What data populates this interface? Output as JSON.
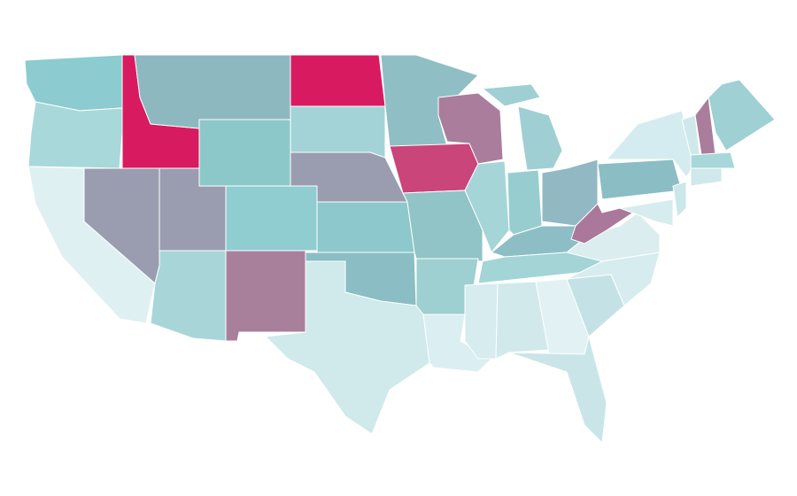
{
  "map": {
    "regions": [
      {
        "color": "#8ccbd0"
      },
      {
        "color": "#a8d8da"
      },
      {
        "color": "#dff0f3"
      },
      {
        "color": "#d81b60"
      },
      {
        "color": "#9a9db0"
      },
      {
        "color": "#8db8c0"
      },
      {
        "color": "#8cc8ca"
      },
      {
        "color": "#9a9db0"
      },
      {
        "color": "#a8d6d8"
      },
      {
        "color": "#90cdd0"
      },
      {
        "color": "#a9809c"
      },
      {
        "color": "#d81b60"
      },
      {
        "color": "#a3d3d6"
      },
      {
        "color": "#9a9db0"
      },
      {
        "color": "#8cc8cc"
      },
      {
        "color": "#8bbdc4"
      },
      {
        "color": "#d0e9eb"
      },
      {
        "color": "#8fbfc4"
      },
      {
        "color": "#c9457a"
      },
      {
        "color": "#90c4c6"
      },
      {
        "color": "#9ecfd1"
      },
      {
        "color": "#dbeef1"
      },
      {
        "color": "#a97d9b"
      },
      {
        "color": "#a6d5d8"
      },
      {
        "color": "#9fcfd2"
      },
      {
        "color": "#9fcfd2"
      },
      {
        "color": "#98cdd0"
      },
      {
        "color": "#92b8c4"
      },
      {
        "color": "#8dbec6"
      },
      {
        "color": "#a3d4d6"
      },
      {
        "color": "#d6ecef"
      },
      {
        "color": "#d2e9ec"
      },
      {
        "color": "#e2f2f4"
      },
      {
        "color": "#c9e5e8"
      },
      {
        "color": "#c4e2e5"
      },
      {
        "color": "#d6ecee"
      },
      {
        "color": "#dcedf0"
      },
      {
        "color": "#a9789b"
      },
      {
        "color": "#8bbec4"
      },
      {
        "color": "#d4ecef"
      },
      {
        "color": "#cce7ea"
      },
      {
        "color": "#d6ecee"
      },
      {
        "color": "#cfe8eb"
      },
      {
        "color": "#a97d9b"
      },
      {
        "color": "#9ed0d4"
      },
      {
        "color": "#a8d7d9"
      },
      {
        "color": "#d0e8eb"
      }
    ]
  }
}
